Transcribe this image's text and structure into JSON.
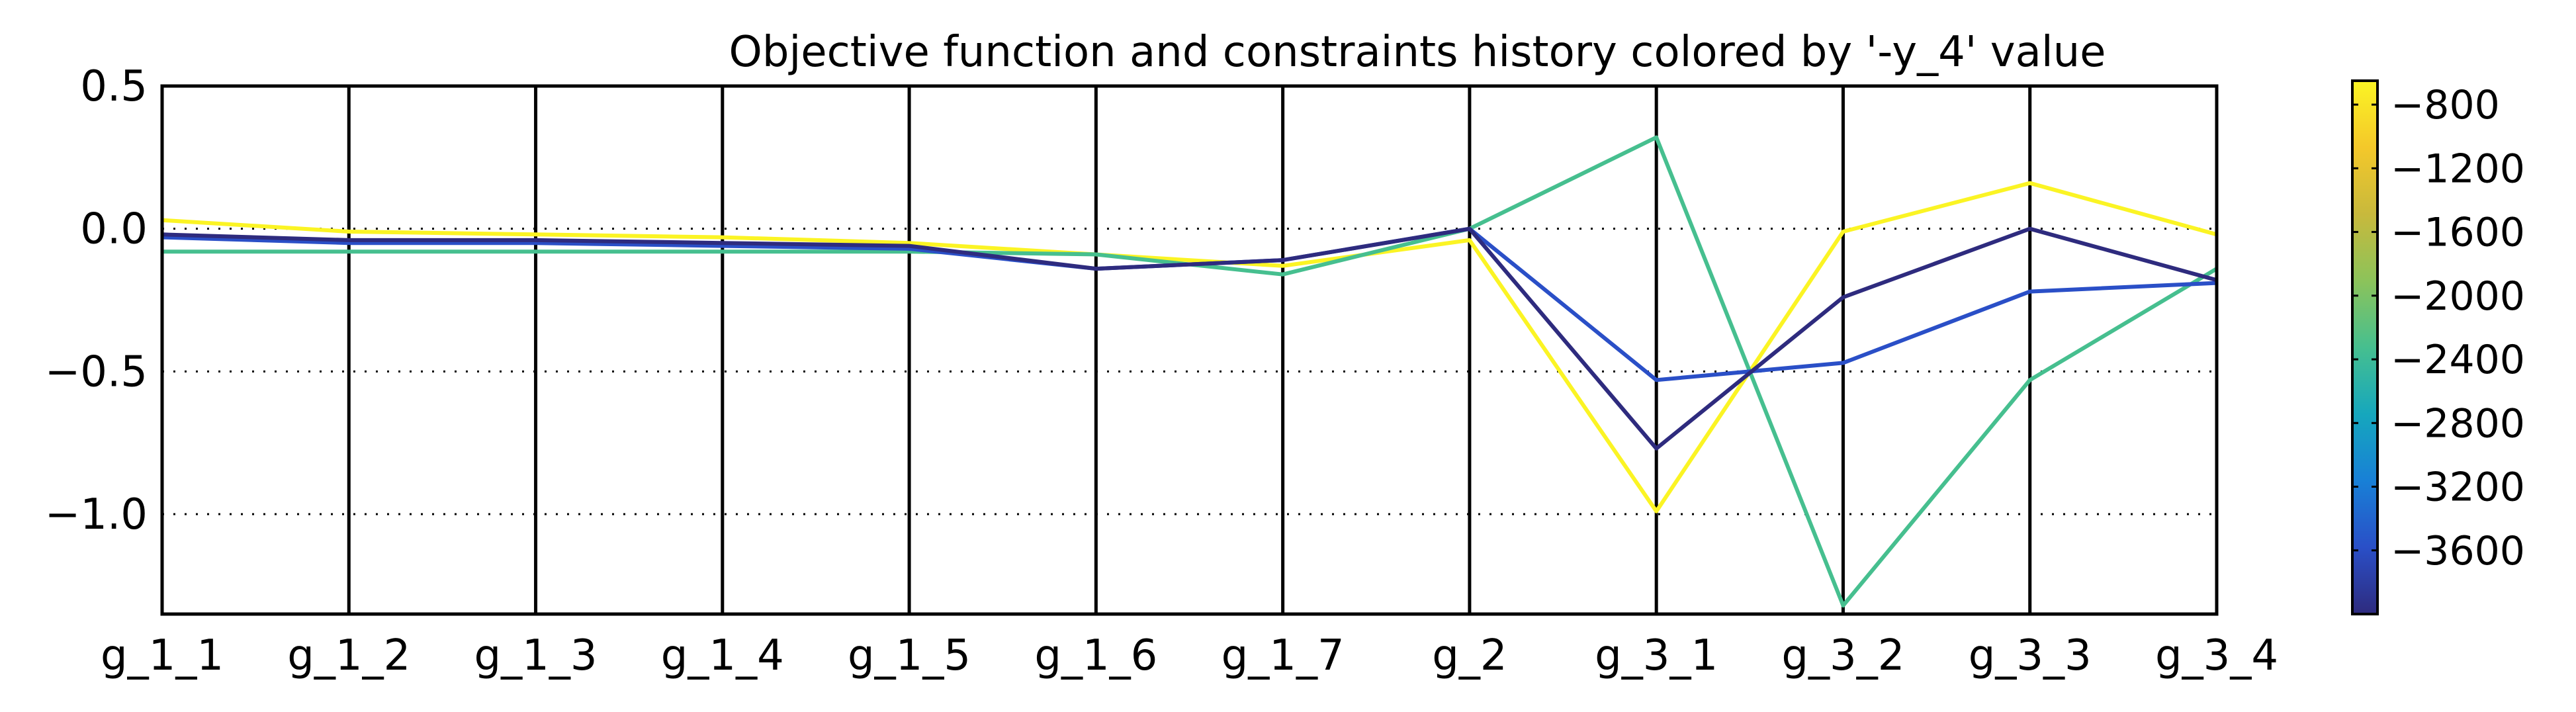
{
  "chart_data": {
    "type": "line",
    "title": "Objective function and constraints history colored by '-y_4' value",
    "xlabel": "",
    "ylabel": "",
    "categories": [
      "g_1_1",
      "g_1_2",
      "g_1_3",
      "g_1_4",
      "g_1_5",
      "g_1_6",
      "g_1_7",
      "g_2",
      "g_3_1",
      "g_3_2",
      "g_3_3",
      "g_3_4"
    ],
    "ylim": [
      -1.35,
      0.5
    ],
    "yticks": [
      0.5,
      0.0,
      -0.5,
      -1.0
    ],
    "ytick_labels": [
      "0.5",
      "0.0",
      "−0.5",
      "−1.0"
    ],
    "grid": "horizontal dotted",
    "vertical_axis_lines": true,
    "series": [
      {
        "color": "#fbf424",
        "colorbar_value": -700,
        "values": [
          0.03,
          -0.01,
          -0.02,
          -0.03,
          -0.05,
          -0.09,
          -0.13,
          -0.04,
          -0.99,
          -0.01,
          0.16,
          -0.02
        ]
      },
      {
        "color": "#46bf8f",
        "colorbar_value": -2100,
        "values": [
          -0.08,
          -0.08,
          -0.08,
          -0.08,
          -0.08,
          -0.09,
          -0.16,
          0.0,
          0.32,
          -1.32,
          -0.53,
          -0.14
        ]
      },
      {
        "color": "#2a4fc7",
        "colorbar_value": -3400,
        "values": [
          -0.03,
          -0.05,
          -0.05,
          -0.06,
          -0.07,
          -0.14,
          -0.11,
          0.0,
          -0.53,
          -0.47,
          -0.22,
          -0.19
        ]
      },
      {
        "color": "#2e2b7e",
        "colorbar_value": -3900,
        "values": [
          -0.02,
          -0.04,
          -0.04,
          -0.05,
          -0.06,
          -0.14,
          -0.11,
          0.0,
          -0.77,
          -0.24,
          0.0,
          -0.18
        ]
      }
    ],
    "colorbar": {
      "min": -4000,
      "max": -650,
      "ticks": [
        -800,
        -1200,
        -1600,
        -2000,
        -2400,
        -2800,
        -3200,
        -3600
      ],
      "tick_labels": [
        "−800",
        "−1200",
        "−1600",
        "−2000",
        "−2400",
        "−2800",
        "−3200",
        "−3600"
      ],
      "colormap": [
        "#2e2b7e",
        "#2a4fc7",
        "#1880d6",
        "#16a7bd",
        "#46bf8f",
        "#8cc35a",
        "#c8b93c",
        "#f4c82a",
        "#fbf424"
      ]
    }
  }
}
